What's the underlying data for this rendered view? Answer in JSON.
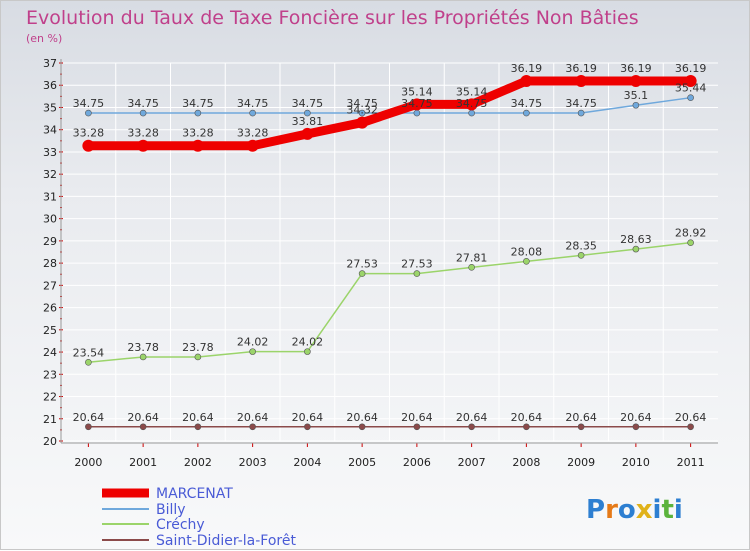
{
  "chart_data": {
    "type": "line",
    "title": "Evolution du Taux de Taxe Foncière sur les Propriétés Non Bâties",
    "subtitle": "(en %)",
    "x": [
      "2000",
      "2001",
      "2002",
      "2003",
      "2004",
      "2005",
      "2006",
      "2007",
      "2008",
      "2009",
      "2010",
      "2011"
    ],
    "ylim": [
      20,
      37
    ],
    "yticks": [
      20,
      21,
      22,
      23,
      24,
      25,
      26,
      27,
      28,
      29,
      30,
      31,
      32,
      33,
      34,
      35,
      36,
      37
    ],
    "grid": true,
    "legend_position": "bottom-left",
    "series": [
      {
        "name": "MARCENAT",
        "color": "#ee0000",
        "values": [
          33.28,
          33.28,
          33.28,
          33.28,
          33.81,
          34.32,
          35.14,
          35.14,
          36.19,
          36.19,
          36.19,
          36.19
        ],
        "labels": [
          "33.28",
          "33.28",
          "33.28",
          "33.28",
          "33.81",
          "34.32",
          "35.14",
          "35.14",
          "36.19",
          "36.19",
          "36.19",
          "36.19"
        ]
      },
      {
        "name": "Billy",
        "color": "#6fa8dc",
        "values": [
          34.75,
          34.75,
          34.75,
          34.75,
          34.75,
          34.75,
          34.75,
          34.75,
          34.75,
          34.75,
          35.1,
          35.44
        ],
        "labels": [
          "34.75",
          "34.75",
          "34.75",
          "34.75",
          "34.75",
          "34.75",
          "34.75",
          "34.75",
          "34.75",
          "34.75",
          "35.1",
          "35.44"
        ]
      },
      {
        "name": "Créchy",
        "color": "#9bd46a",
        "values": [
          23.54,
          23.78,
          23.78,
          24.02,
          24.02,
          27.53,
          27.53,
          27.81,
          28.08,
          28.35,
          28.63,
          28.92
        ],
        "labels": [
          "23.54",
          "23.78",
          "23.78",
          "24.02",
          "24.02",
          "27.53",
          "27.53",
          "27.81",
          "28.08",
          "28.35",
          "28.63",
          "28.92"
        ]
      },
      {
        "name": "Saint-Didier-la-Forêt",
        "color": "#8b4a4a",
        "values": [
          20.64,
          20.64,
          20.64,
          20.64,
          20.64,
          20.64,
          20.64,
          20.64,
          20.64,
          20.64,
          20.64,
          20.64
        ],
        "labels": [
          "20.64",
          "20.64",
          "20.64",
          "20.64",
          "20.64",
          "20.64",
          "20.64",
          "20.64",
          "20.64",
          "20.64",
          "20.64",
          "20.64"
        ]
      }
    ]
  },
  "logo": {
    "text": "Proxiti"
  }
}
